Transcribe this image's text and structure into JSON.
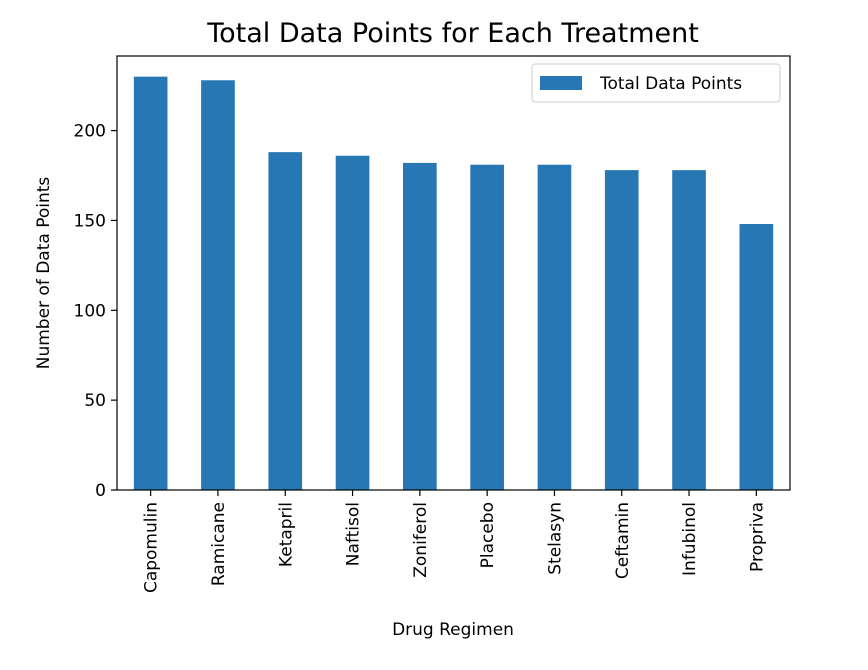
{
  "chart_data": {
    "type": "bar",
    "title": "Total Data Points for Each Treatment",
    "xlabel": "Drug Regimen",
    "ylabel": "Number of Data Points",
    "categories": [
      "Capomulin",
      "Ramicane",
      "Ketapril",
      "Naftisol",
      "Zoniferol",
      "Placebo",
      "Stelasyn",
      "Ceftamin",
      "Infubinol",
      "Propriva"
    ],
    "series": [
      {
        "name": "Total Data Points",
        "values": [
          230,
          228,
          188,
          186,
          182,
          181,
          181,
          178,
          178,
          148
        ],
        "color": "#2677b3"
      }
    ],
    "ylim": [
      0,
      241.5
    ],
    "yticks": [
      0,
      50,
      100,
      150,
      200
    ],
    "grid": false,
    "legend_position": "top-right"
  }
}
